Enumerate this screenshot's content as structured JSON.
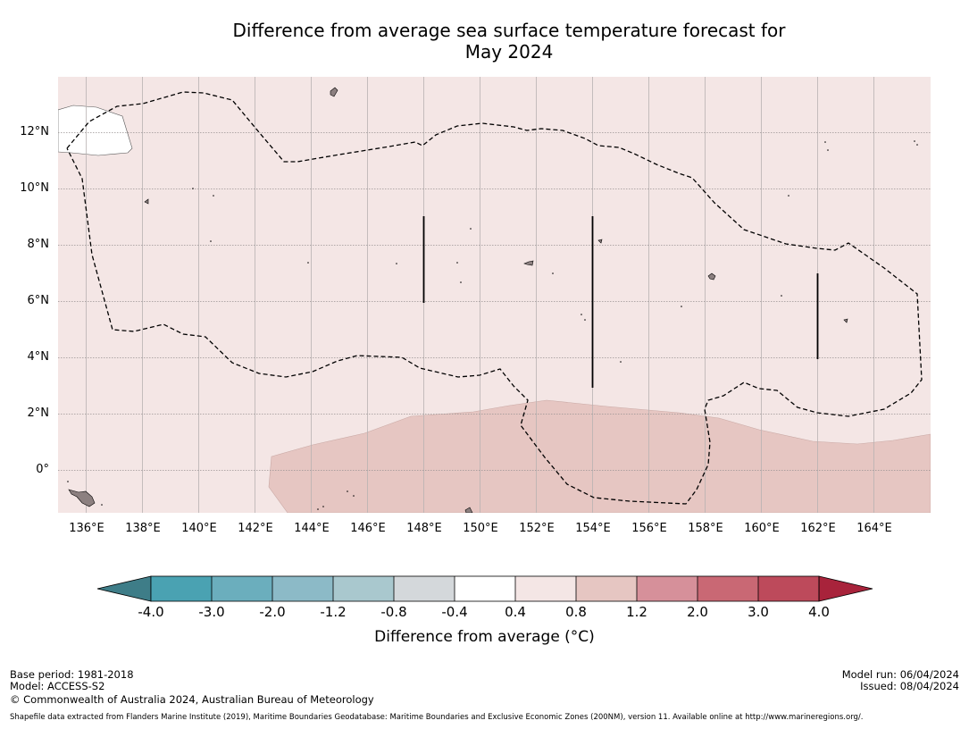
{
  "title": {
    "line1": "Difference from average sea surface temperature forecast for",
    "line2": "May 2024"
  },
  "map": {
    "lat_labels": [
      "12°N",
      "10°N",
      "8°N",
      "6°N",
      "4°N",
      "2°N",
      "0°"
    ],
    "lon_labels": [
      "136°E",
      "138°E",
      "140°E",
      "142°E",
      "144°E",
      "146°E",
      "148°E",
      "150°E",
      "152°E",
      "154°E",
      "156°E",
      "158°E",
      "160°E",
      "162°E",
      "164°E"
    ],
    "lat_values": [
      12,
      10,
      8,
      6,
      4,
      2,
      0
    ],
    "lon_values": [
      136,
      138,
      140,
      142,
      144,
      146,
      148,
      150,
      152,
      154,
      156,
      158,
      160,
      162,
      164
    ],
    "lon_range": [
      135,
      166
    ],
    "lat_range": [
      -1.5,
      14
    ],
    "base_color": "#f4e6e5",
    "anomaly_color": "#e6c6c2",
    "land_color": "#ffffff",
    "island_color": "#8c8080",
    "eez_line_style": "dashed"
  },
  "colorbar": {
    "ticks": [
      "-4.0",
      "-3.0",
      "-2.0",
      "-1.2",
      "-0.8",
      "-0.4",
      "0.4",
      "0.8",
      "1.2",
      "2.0",
      "3.0",
      "4.0"
    ],
    "colors": [
      "#3e7d88",
      "#4aa2b2",
      "#6baebd",
      "#8cbac7",
      "#a9c8ce",
      "#d4d8db",
      "#ffffff",
      "#f4e6e5",
      "#e6c6c2",
      "#d6909a",
      "#c96874",
      "#bd4a5b",
      "#a8233b"
    ],
    "label": "Difference from average (°C)"
  },
  "footer": {
    "base_period": "Base period: 1981-2018",
    "model": "Model: ACCESS-S2",
    "copyright": "© Commonwealth of Australia 2024, Australian Bureau of Meteorology",
    "model_run": "Model run: 06/04/2024",
    "issued": "Issued: 08/04/2024",
    "shapefile": "Shapefile data extracted from Flanders Marine Institute (2019), Maritime Boundaries Geodatabase: Maritime Boundaries and Exclusive Economic Zones (200NM), version 11. Available online at http://www.marineregions.org/."
  }
}
